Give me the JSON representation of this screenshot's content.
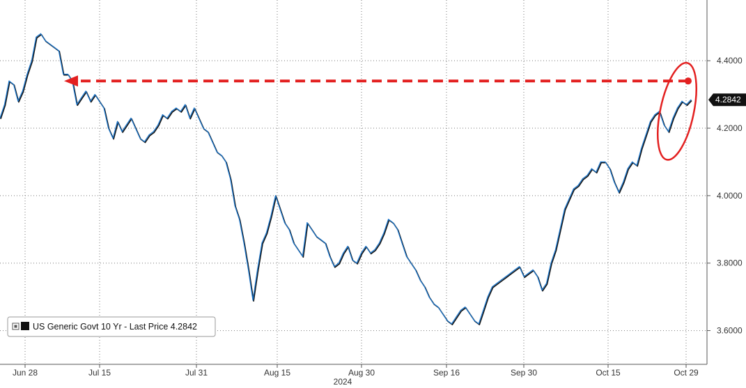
{
  "chart_data": {
    "type": "line",
    "year_label": "2024",
    "x_ticks": [
      "Jun 28",
      "Jul 15",
      "Jul 31",
      "Aug 15",
      "Aug 30",
      "Sep 16",
      "Sep 30",
      "Oct 15",
      "Oct 29"
    ],
    "y_ticks": [
      "4.4000",
      "4.2000",
      "4.0000",
      "3.8000",
      "3.6000"
    ],
    "ylim": [
      3.5,
      4.58
    ],
    "grid": true,
    "legend": {
      "placement": "bottom-left",
      "text": "US Generic Govt 10 Yr - Last Price 4.2842"
    },
    "last_value_label": "4.2842",
    "colors": {
      "line": "#1a74c9",
      "line_shadow": "#111111",
      "annotation": "#e32020",
      "grid": "#777777",
      "last_badge": "#111111"
    },
    "series": [
      {
        "values": [
          4.23,
          4.27,
          4.34,
          4.33,
          4.28,
          4.31,
          4.36,
          4.4,
          4.47,
          4.48,
          4.46,
          4.45,
          4.44,
          4.43,
          4.36,
          4.36,
          4.34,
          4.27,
          4.29,
          4.31,
          4.28,
          4.3,
          4.28,
          4.26,
          4.2,
          4.17,
          4.22,
          4.19,
          4.21,
          4.23,
          4.2,
          4.17,
          4.16,
          4.18,
          4.19,
          4.21,
          4.24,
          4.23,
          4.25,
          4.26,
          4.25,
          4.27,
          4.23,
          4.26,
          4.23,
          4.2,
          4.19,
          4.16,
          4.13,
          4.12,
          4.1,
          4.05,
          3.97,
          3.93,
          3.86,
          3.78,
          3.69,
          3.78,
          3.86,
          3.89,
          3.94,
          4.0,
          3.96,
          3.92,
          3.9,
          3.86,
          3.84,
          3.82,
          3.92,
          3.9,
          3.88,
          3.87,
          3.86,
          3.82,
          3.79,
          3.8,
          3.83,
          3.85,
          3.81,
          3.8,
          3.83,
          3.85,
          3.83,
          3.84,
          3.86,
          3.89,
          3.93,
          3.92,
          3.9,
          3.86,
          3.82,
          3.8,
          3.78,
          3.75,
          3.73,
          3.7,
          3.68,
          3.67,
          3.65,
          3.63,
          3.62,
          3.64,
          3.66,
          3.67,
          3.65,
          3.63,
          3.62,
          3.66,
          3.7,
          3.73,
          3.74,
          3.75,
          3.76,
          3.77,
          3.78,
          3.79,
          3.76,
          3.77,
          3.78,
          3.76,
          3.72,
          3.74,
          3.8,
          3.84,
          3.9,
          3.96,
          3.99,
          4.02,
          4.03,
          4.05,
          4.06,
          4.08,
          4.07,
          4.1,
          4.1,
          4.08,
          4.04,
          4.01,
          4.04,
          4.08,
          4.1,
          4.09,
          4.14,
          4.18,
          4.22,
          4.24,
          4.25,
          4.21,
          4.19,
          4.23,
          4.26,
          4.28,
          4.27,
          4.2842
        ]
      }
    ]
  }
}
